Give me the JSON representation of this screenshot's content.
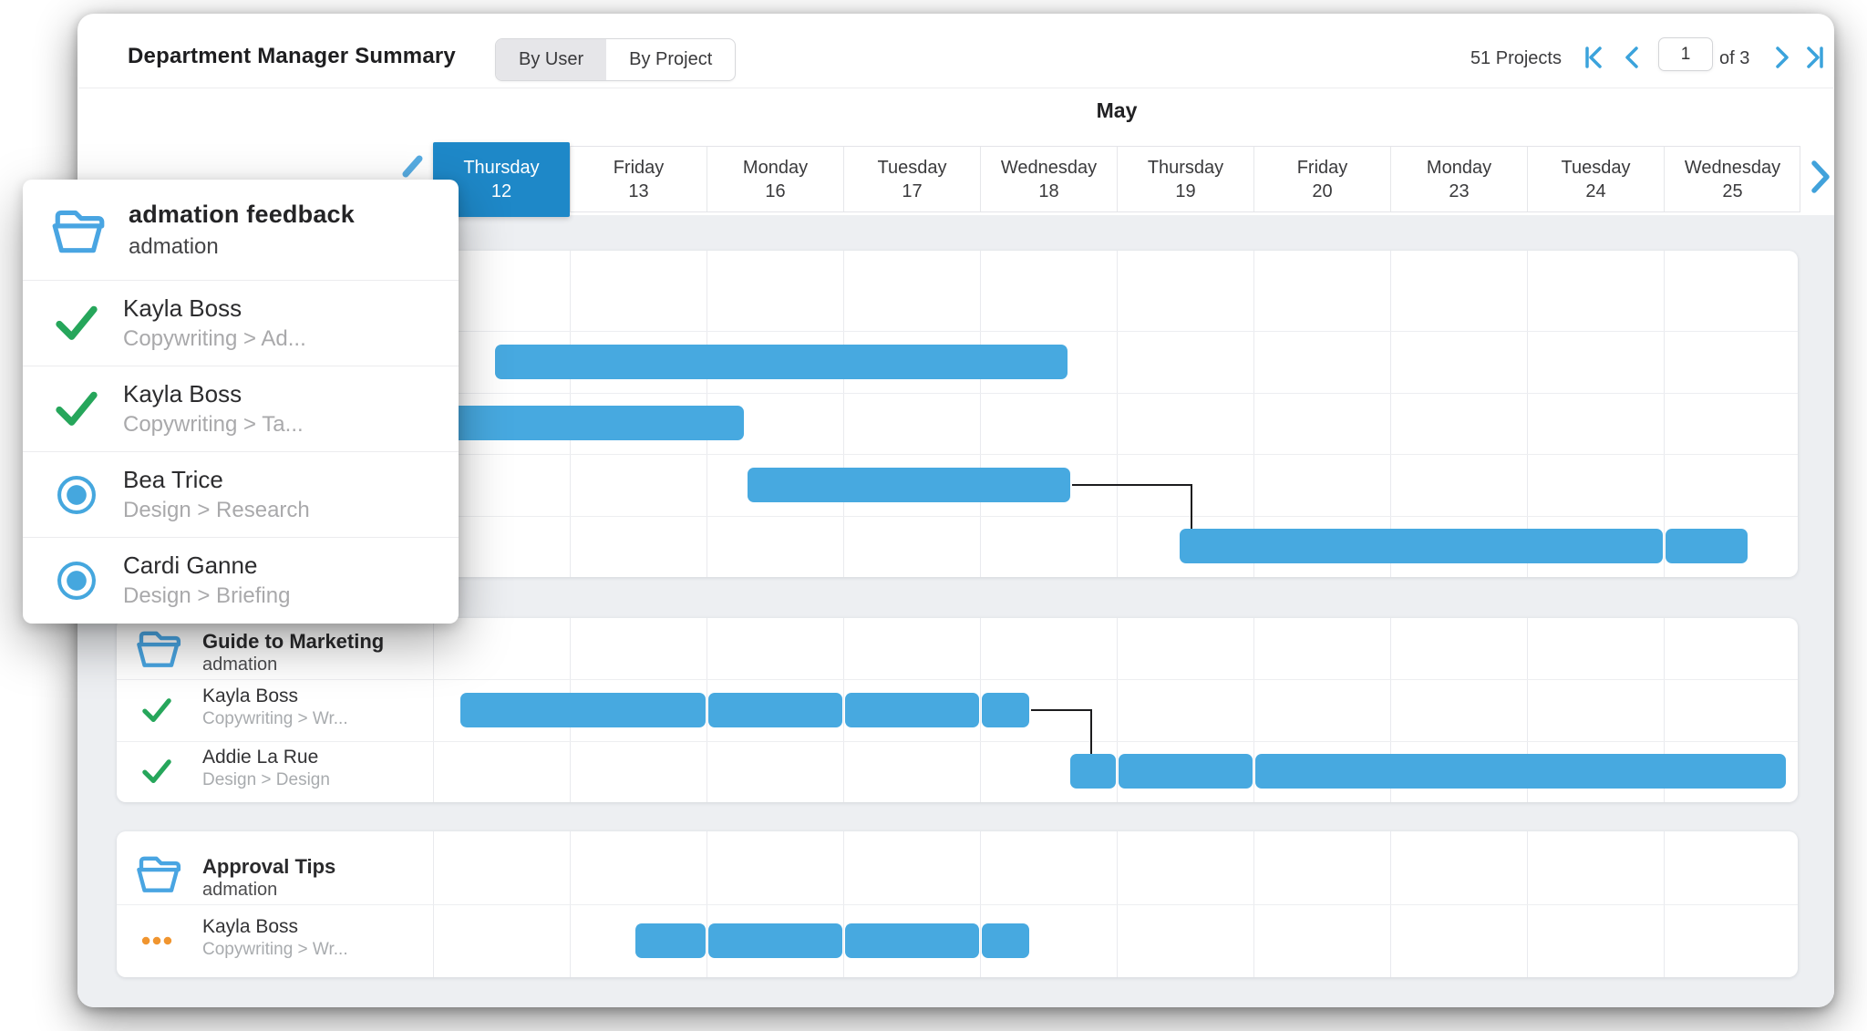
{
  "header": {
    "title": "Department Manager Summary",
    "view_toggle": {
      "options": [
        "By User",
        "By Project"
      ],
      "selected": "By User"
    },
    "projects_count": "51 Projects",
    "pagination": {
      "page": "1",
      "of_label": "of 3"
    }
  },
  "timeline": {
    "month": "May",
    "days": [
      {
        "name": "Thursday",
        "date": "12",
        "selected": true
      },
      {
        "name": "Friday",
        "date": "13"
      },
      {
        "name": "Monday",
        "date": "16"
      },
      {
        "name": "Tuesday",
        "date": "17"
      },
      {
        "name": "Wednesday",
        "date": "18"
      },
      {
        "name": "Thursday",
        "date": "19"
      },
      {
        "name": "Friday",
        "date": "20"
      },
      {
        "name": "Monday",
        "date": "23"
      },
      {
        "name": "Tuesday",
        "date": "24"
      },
      {
        "name": "Wednesday",
        "date": "25"
      }
    ]
  },
  "popup": {
    "title": "admation feedback",
    "subtitle": "admation",
    "tasks": [
      {
        "icon": "check",
        "name": "Kayla Boss",
        "detail": "Copywriting > Ad..."
      },
      {
        "icon": "check",
        "name": "Kayla Boss",
        "detail": "Copywriting > Ta..."
      },
      {
        "icon": "radio",
        "name": "Bea Trice",
        "detail": "Design > Research"
      },
      {
        "icon": "radio",
        "name": "Cardi Ganne",
        "detail": "Design > Briefing"
      }
    ]
  },
  "chart_data": {
    "type": "gantt",
    "month": "May",
    "day_axis": [
      "Thursday 12",
      "Friday 13",
      "Monday 16",
      "Tuesday 17",
      "Wednesday 18",
      "Thursday 19",
      "Friday 20",
      "Monday 23",
      "Tuesday 24",
      "Wednesday 25"
    ],
    "axis_note": "bar positions in day-column units; 0 = start of Thursday 12, 10 = end of Wednesday 25",
    "projects": [
      {
        "name": "admation feedback",
        "client": "admation",
        "tasks": [
          {
            "assignee": "Kayla Boss",
            "category": "Copywriting > Ad...",
            "icon": "check",
            "bars": [
              [
                0.44,
                4.65
              ]
            ]
          },
          {
            "assignee": "Kayla Boss",
            "category": "Copywriting > Ta...",
            "icon": "check",
            "bars": [
              [
                0.05,
                2.28
              ]
            ]
          },
          {
            "assignee": "Bea Trice",
            "category": "Design > Research",
            "icon": "radio",
            "bars": [
              [
                2.29,
                4.67
              ]
            ]
          },
          {
            "assignee": "Cardi Ganne",
            "category": "Design > Briefing",
            "icon": "radio",
            "bars": [
              [
                5.45,
                9.0
              ],
              [
                9.0,
                9.62
              ]
            ]
          }
        ],
        "dependency": {
          "from_task": 2,
          "to_task": 3,
          "elbow_day": 5.55
        }
      },
      {
        "name": "Guide to Marketing",
        "client": "admation",
        "tasks": [
          {
            "assignee": "Kayla Boss",
            "category": "Copywriting > Wr...",
            "icon": "check",
            "bars": [
              [
                0.19,
                2.0
              ],
              [
                2.0,
                3.0
              ],
              [
                3.0,
                4.0
              ],
              [
                4.0,
                4.37
              ]
            ]
          },
          {
            "assignee": "Addie La Rue",
            "category": "Design > Design",
            "icon": "check",
            "bars": [
              [
                4.65,
                5.0
              ],
              [
                5.0,
                6.0
              ],
              [
                6.0,
                9.9
              ]
            ]
          }
        ],
        "dependency": {
          "from_task": 0,
          "to_task": 1,
          "elbow_day": 4.82
        }
      },
      {
        "name": "Approval Tips",
        "client": "admation",
        "tasks": [
          {
            "assignee": "Kayla Boss",
            "category": "Copywriting > Wr...",
            "icon": "dots",
            "bars": [
              [
                1.47,
                2.0
              ],
              [
                2.0,
                3.0
              ],
              [
                3.0,
                4.0
              ],
              [
                4.0,
                4.37
              ]
            ]
          }
        ]
      }
    ]
  },
  "colors": {
    "bar_blue": "#47a9e0",
    "selected_day_blue": "#1e88c8",
    "accent_blue": "#3ba3dc",
    "check_green": "#26a65b",
    "pending_orange": "#f0952f",
    "muted_text": "#a8abae",
    "dark_text": "#2e2e30",
    "canvas_gray": "#edeff2"
  }
}
